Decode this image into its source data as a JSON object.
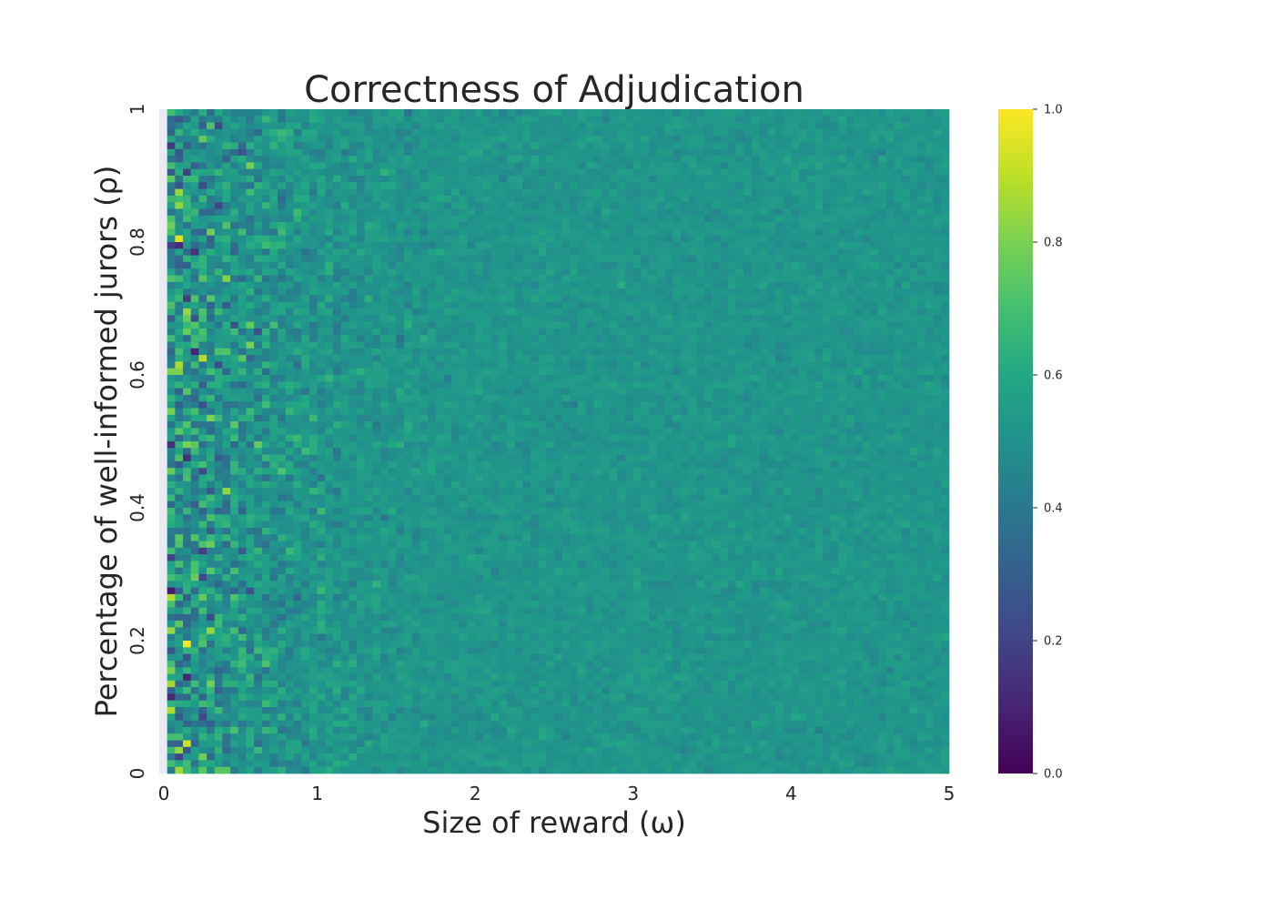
{
  "chart_data": {
    "type": "heatmap",
    "title": "Correctness of Adjudication",
    "xlabel": "Size of reward (ω)",
    "ylabel": "Percentage of well-informed jurors (ρ)",
    "xlim": [
      0,
      5
    ],
    "ylim": [
      0,
      1
    ],
    "x_ticks": [
      "0",
      "1",
      "2",
      "3",
      "4",
      "5"
    ],
    "x_tick_values": [
      0,
      1,
      2,
      3,
      4,
      5
    ],
    "y_ticks": [
      "0",
      "0.2",
      "0.4",
      "0.6",
      "0.8",
      "1"
    ],
    "y_tick_values": [
      0,
      0.2,
      0.4,
      0.6,
      0.8,
      1
    ],
    "colormap": "viridis",
    "colorbar": {
      "range": [
        0,
        1
      ],
      "ticks": [
        "0.0",
        "0.2",
        "0.4",
        "0.6",
        "0.8",
        "1.0"
      ],
      "tick_values": [
        0,
        0.2,
        0.4,
        0.6,
        0.8,
        1.0
      ]
    },
    "grid": {
      "columns": 100,
      "rows": 100,
      "first_column_empty": true,
      "typical_value": 0.52,
      "low_omega_spread": 0.2,
      "high_omega_spread": 0.025
    }
  }
}
